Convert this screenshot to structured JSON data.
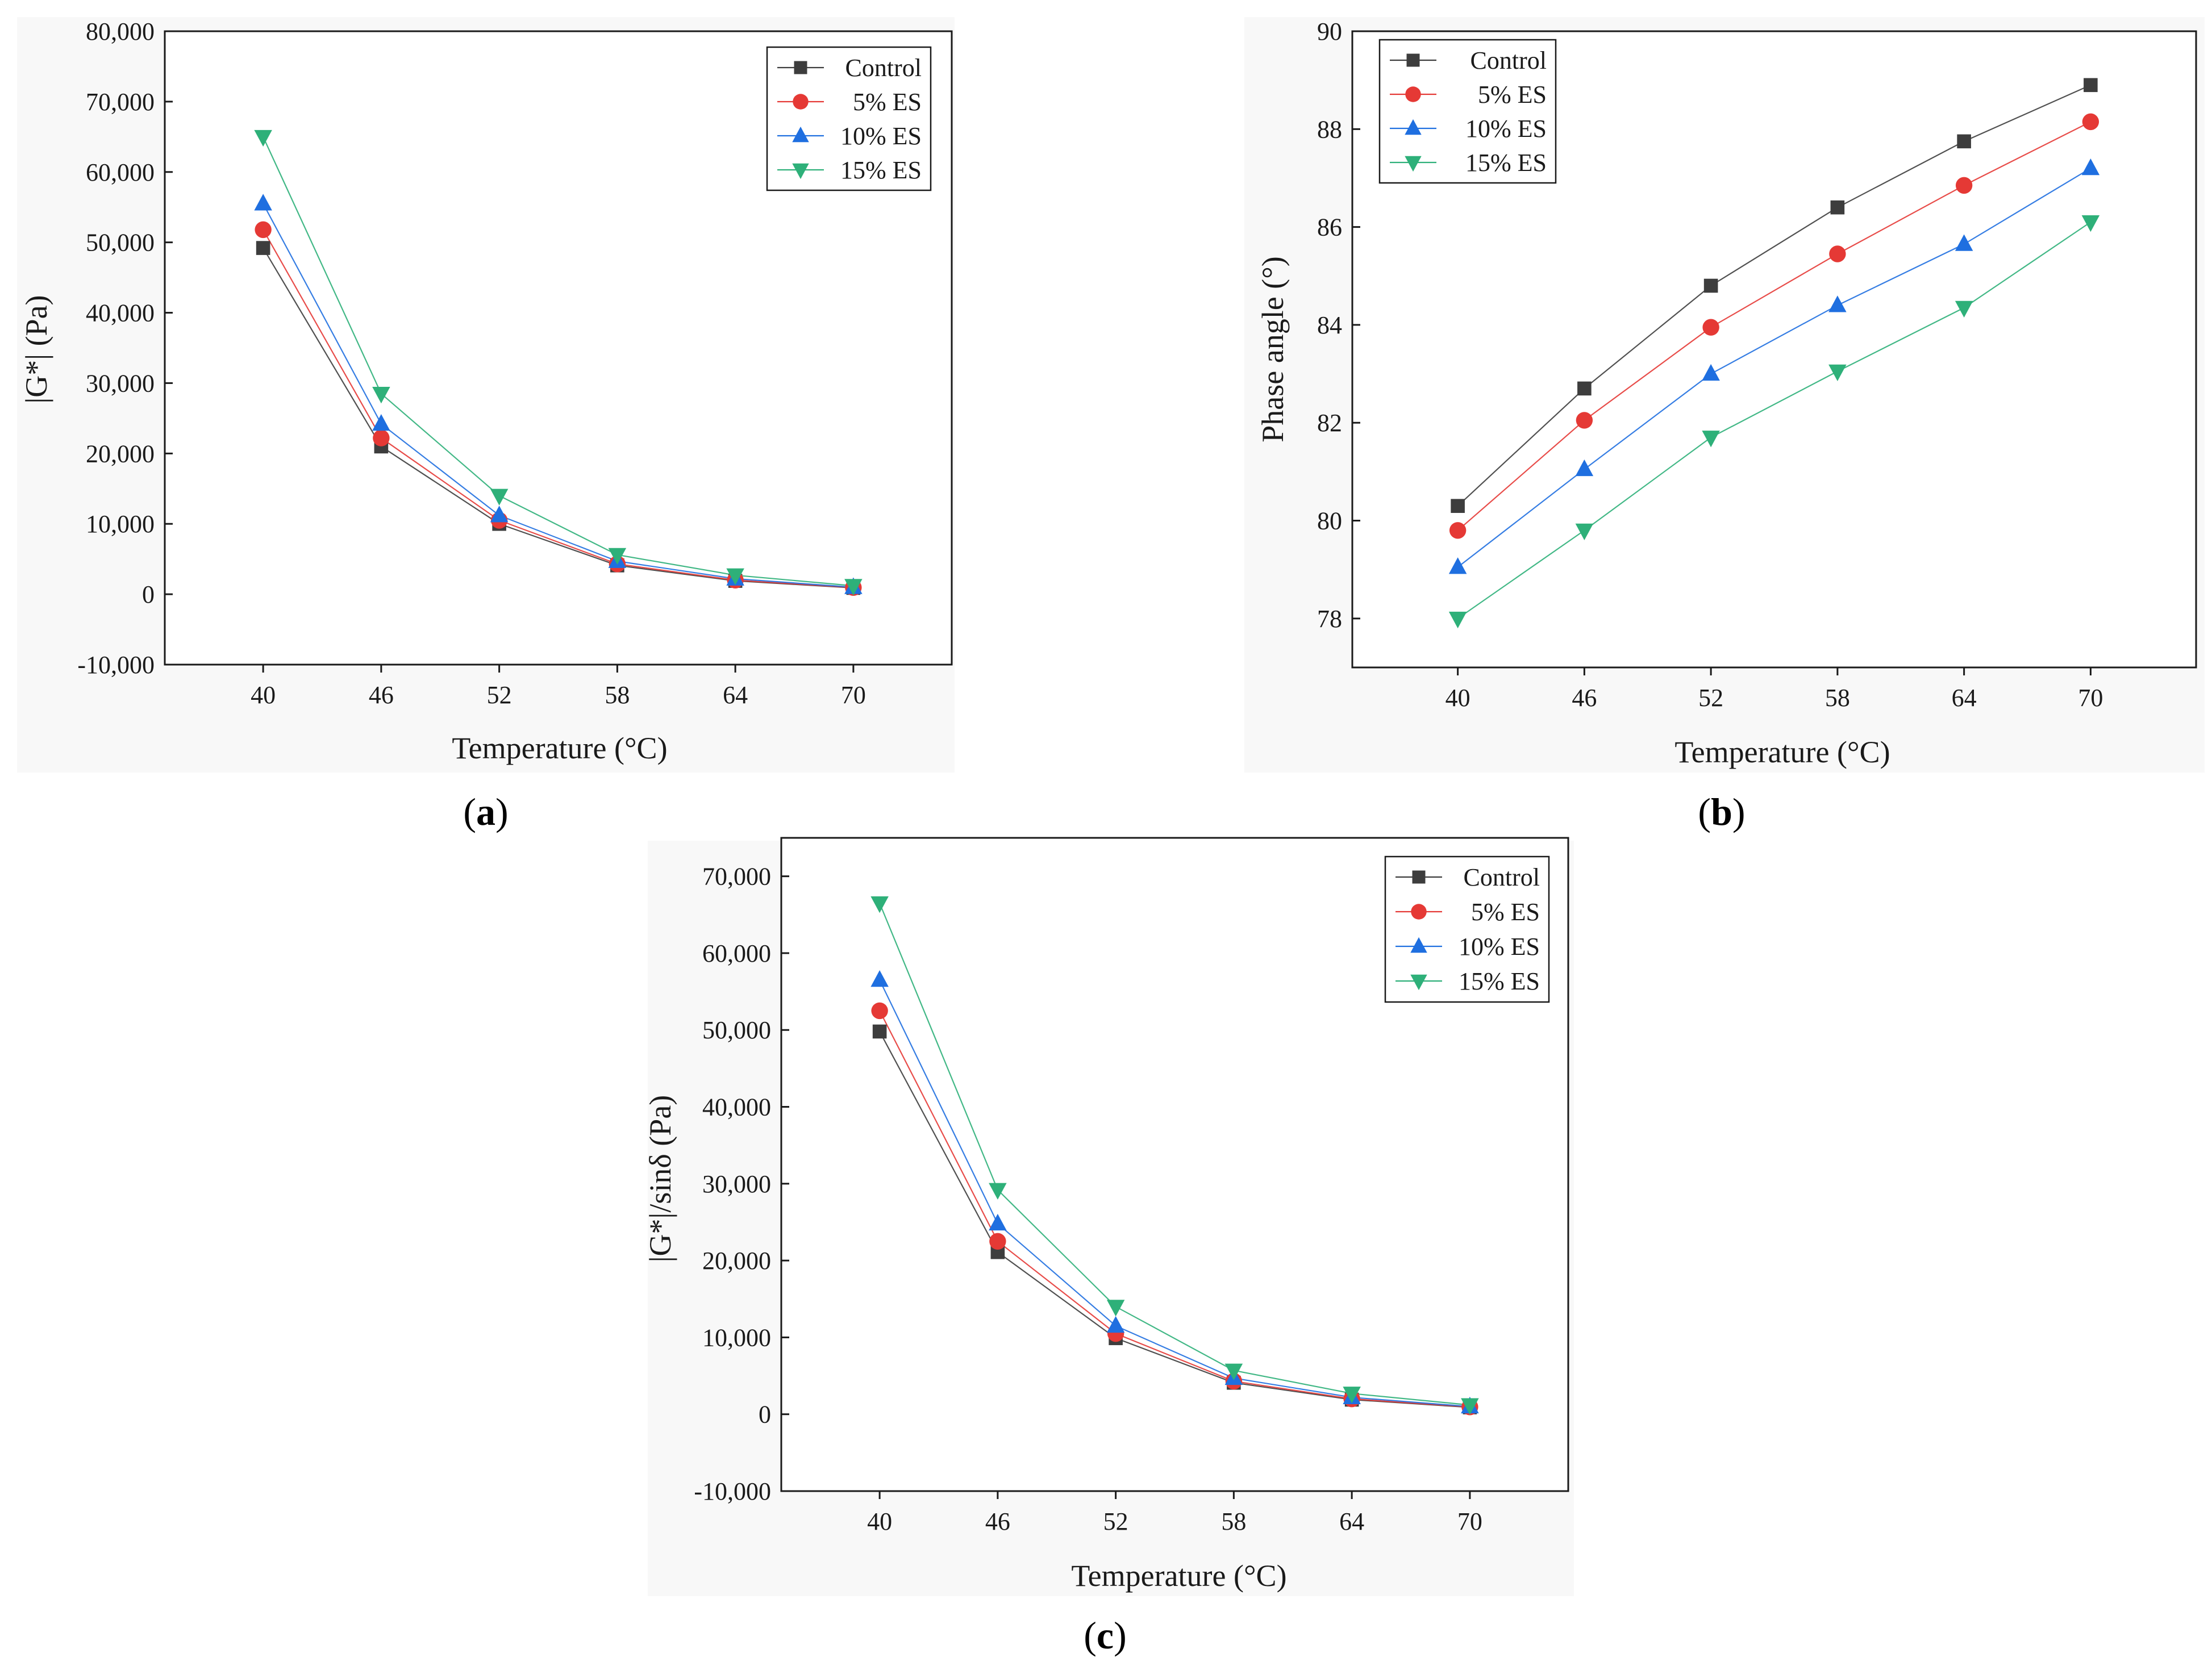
{
  "colors": {
    "Control": "#3d3d3d",
    "5% ES": "#e53935",
    "10% ES": "#1f6fe0",
    "15% ES": "#2eb079",
    "axis": "#1a1a1a",
    "panel_bg": "#f8f8f8"
  },
  "chart_data": [
    {
      "id": "a",
      "type": "line",
      "panel_label_prefix": "(",
      "panel_label": "a",
      "panel_label_suffix": ")",
      "title": "",
      "xlabel": "Temperature (°C)",
      "ylabel": "|G*| (Pa)",
      "x": [
        40,
        46,
        52,
        58,
        64,
        70
      ],
      "xlim": [
        35,
        75
      ],
      "ylim": [
        -10000,
        80000
      ],
      "yticks": [
        -10000,
        0,
        10000,
        20000,
        30000,
        40000,
        50000,
        60000,
        70000,
        80000
      ],
      "ytick_labels": [
        "-10,000",
        "0",
        "10,000",
        "20,000",
        "30,000",
        "40,000",
        "50,000",
        "60,000",
        "70,000",
        "80,000"
      ],
      "xtick_labels": [
        "40",
        "46",
        "52",
        "58",
        "64",
        "70"
      ],
      "legend_position": "top-right",
      "series": [
        {
          "name": "Control",
          "label": "Control",
          "marker": "square",
          "values": [
            49200,
            21000,
            10000,
            4100,
            1900,
            900
          ]
        },
        {
          "name": "5% ES",
          "label": "5% ES",
          "marker": "circle",
          "values": [
            51800,
            22200,
            10500,
            4300,
            2000,
            950
          ]
        },
        {
          "name": "10% ES",
          "label": "10% ES",
          "marker": "triangle-up",
          "values": [
            55500,
            24200,
            11200,
            4700,
            2200,
            1000
          ]
        },
        {
          "name": "15% ES",
          "label": "15% ES",
          "marker": "triangle-down",
          "values": [
            65000,
            28500,
            14000,
            5600,
            2700,
            1200
          ]
        }
      ]
    },
    {
      "id": "b",
      "type": "line",
      "panel_label_prefix": "(",
      "panel_label": "b",
      "panel_label_suffix": ")",
      "title": "",
      "xlabel": "Temperature (°C)",
      "ylabel": "Phase angle (°)",
      "x": [
        40,
        46,
        52,
        58,
        64,
        70
      ],
      "xlim": [
        35,
        75
      ],
      "ylim": [
        77,
        90
      ],
      "yticks": [
        78,
        80,
        82,
        84,
        86,
        88,
        90
      ],
      "ytick_labels": [
        "78",
        "80",
        "82",
        "84",
        "86",
        "88",
        "90"
      ],
      "xtick_labels": [
        "40",
        "46",
        "52",
        "58",
        "64",
        "70"
      ],
      "legend_position": "top-left",
      "series": [
        {
          "name": "Control",
          "label": "Control",
          "marker": "square",
          "values": [
            80.3,
            82.7,
            84.8,
            86.4,
            87.75,
            88.9
          ]
        },
        {
          "name": "5% ES",
          "label": "5% ES",
          "marker": "circle",
          "values": [
            79.8,
            82.05,
            83.95,
            85.45,
            86.85,
            88.15
          ]
        },
        {
          "name": "10% ES",
          "label": "10% ES",
          "marker": "triangle-up",
          "values": [
            79.05,
            81.05,
            83.0,
            84.4,
            85.65,
            87.2
          ]
        },
        {
          "name": "15% ES",
          "label": "15% ES",
          "marker": "triangle-down",
          "values": [
            78.0,
            79.8,
            81.7,
            83.05,
            84.35,
            86.1
          ]
        }
      ]
    },
    {
      "id": "c",
      "type": "line",
      "panel_label_prefix": "(",
      "panel_label": "c",
      "panel_label_suffix": ")",
      "title": "",
      "xlabel": "Temperature (°C)",
      "ylabel": "|G*|/sinδ (Pa)",
      "x": [
        40,
        46,
        52,
        58,
        64,
        70
      ],
      "xlim": [
        35,
        75
      ],
      "ylim": [
        -10000,
        75000
      ],
      "yticks": [
        -10000,
        0,
        10000,
        20000,
        30000,
        40000,
        50000,
        60000,
        70000
      ],
      "ytick_labels": [
        "-10,000",
        "0",
        "10,000",
        "20,000",
        "30,000",
        "40,000",
        "50,000",
        "60,000",
        "70,000"
      ],
      "xtick_labels": [
        "40",
        "46",
        "52",
        "58",
        "64",
        "70"
      ],
      "legend_position": "top-right",
      "series": [
        {
          "name": "Control",
          "label": "Control",
          "marker": "square",
          "values": [
            49800,
            21100,
            9900,
            4100,
            1900,
            900
          ]
        },
        {
          "name": "5% ES",
          "label": "5% ES",
          "marker": "circle",
          "values": [
            52500,
            22500,
            10500,
            4300,
            2000,
            950
          ]
        },
        {
          "name": "10% ES",
          "label": "10% ES",
          "marker": "triangle-up",
          "values": [
            56500,
            24800,
            11500,
            4700,
            2200,
            1000
          ]
        },
        {
          "name": "15% ES",
          "label": "15% ES",
          "marker": "triangle-down",
          "values": [
            66500,
            29200,
            14000,
            5700,
            2700,
            1200
          ]
        }
      ]
    }
  ]
}
